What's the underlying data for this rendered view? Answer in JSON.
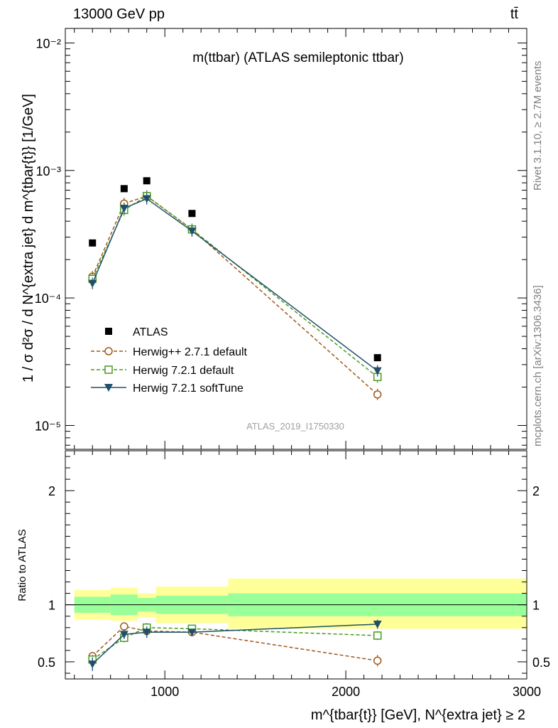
{
  "header": {
    "left_label": "13000 GeV pp",
    "right_label": "tt̄"
  },
  "side_labels": {
    "rivet": "Rivet 3.1.10, ≥ 2.7M events",
    "mcplots": "mcplots.cern.ch [arXiv:1306.3436]"
  },
  "chart_data": [
    {
      "type": "scatter",
      "panel": "main",
      "title": "m(ttbar) (ATLAS semileptonic ttbar)",
      "watermark": "ATLAS_2019_I1750330",
      "ylabel": "1 / σ d²σ / d N^{extra jet} d m^{tbar{t}} [1/GeV]",
      "yscale": "log",
      "ylim": [
        6.5e-06,
        0.013
      ],
      "xlim": [
        450,
        3000
      ],
      "y_tick_labels": [
        "10⁻⁵",
        "10⁻⁴",
        "10⁻³",
        "10⁻²"
      ],
      "legend_position": "lower-left",
      "x": [
        600,
        775,
        900,
        1150,
        2175
      ],
      "series": [
        {
          "name": "ATLAS",
          "color": "#000000",
          "marker": "filled-square",
          "line": "none",
          "values": [
            0.00027,
            0.00072,
            0.00083,
            0.00046,
            3.4e-05
          ]
        },
        {
          "name": "Herwig++ 2.7.1 default",
          "color": "#a0581c",
          "marker": "open-circle",
          "line": "dashed",
          "values": [
            0.000147,
            0.00055,
            0.00063,
            0.000345,
            1.75e-05
          ]
        },
        {
          "name": "Herwig 7.2.1 default",
          "color": "#4a9a1e",
          "marker": "open-square",
          "line": "dashed",
          "values": [
            0.000141,
            0.00049,
            0.00063,
            0.000345,
            2.4e-05
          ]
        },
        {
          "name": "Herwig 7.2.1 softTune",
          "color": "#1f5068",
          "marker": "filled-triangle-down",
          "line": "solid",
          "values": [
            0.00013,
            0.000505,
            0.0006,
            0.000335,
            2.68e-05
          ]
        }
      ]
    },
    {
      "type": "scatter",
      "panel": "ratio",
      "ylabel": "Ratio to ATLAS",
      "xlabel": "m^{tbar{t}} [GeV], N^{extra jet} ≥ 2",
      "ylim": [
        0.35,
        2.35
      ],
      "xlim": [
        450,
        3000
      ],
      "y_ticks": [
        0.5,
        1,
        2
      ],
      "y_tick_labels": [
        "0.5",
        "1",
        "2"
      ],
      "x_ticks": [
        1000,
        2000,
        3000
      ],
      "x_tick_labels": [
        "1000",
        "2000",
        "3000"
      ],
      "bins": [
        {
          "x0": 500,
          "x1": 700,
          "band_inner": [
            0.93,
            1.07
          ],
          "band_outer": [
            0.87,
            1.13
          ]
        },
        {
          "x0": 700,
          "x1": 850,
          "band_inner": [
            0.91,
            1.09
          ],
          "band_outer": [
            0.86,
            1.15
          ]
        },
        {
          "x0": 850,
          "x1": 950,
          "band_inner": [
            0.94,
            1.06
          ],
          "band_outer": [
            0.89,
            1.1
          ]
        },
        {
          "x0": 950,
          "x1": 1350,
          "band_inner": [
            0.92,
            1.08
          ],
          "band_outer": [
            0.84,
            1.16
          ]
        },
        {
          "x0": 1350,
          "x1": 3000,
          "band_inner": [
            0.9,
            1.1
          ],
          "band_outer": [
            0.79,
            1.23
          ]
        }
      ],
      "x": [
        600,
        775,
        900,
        1150,
        2175
      ],
      "series": [
        {
          "name": "Herwig++ 2.7.1 default",
          "values": [
            0.55,
            0.81,
            0.77,
            0.76,
            0.51
          ],
          "err": [
            0.03,
            0.03,
            0.04,
            0.02,
            0.05
          ]
        },
        {
          "name": "Herwig 7.2.1 default",
          "values": [
            0.52,
            0.71,
            0.8,
            0.79,
            0.73
          ],
          "err": [
            0.04,
            0.04,
            0.04,
            0.02,
            0.04
          ]
        },
        {
          "name": "Herwig 7.2.1 softTune",
          "values": [
            0.48,
            0.74,
            0.76,
            0.76,
            0.83
          ],
          "err": [
            0.06,
            0.04,
            0.05,
            0.02,
            0.04
          ]
        }
      ],
      "colors": {
        "band_inner": "#99ff99",
        "band_outer": "#ffff99"
      }
    }
  ]
}
